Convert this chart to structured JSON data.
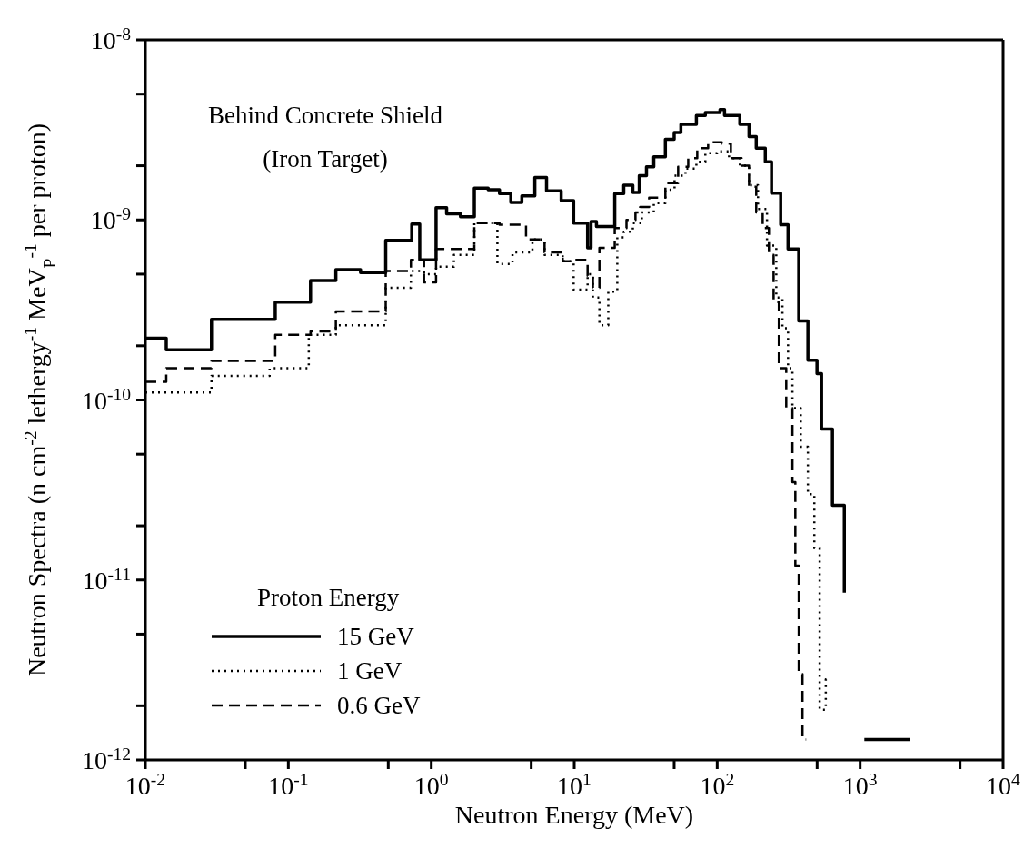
{
  "chart_data": {
    "type": "step",
    "xlabel": "Neutron Energy (MeV)",
    "ylabel": "Neutron Spectra (n cm$^{-2}$ lethergy$^{-1}$ MeV$_{P}$$^{-1}$ per proton)",
    "legend_title": "Proton Energy",
    "annotations": [
      "Behind Concrete Shield",
      "(Iron Target)"
    ],
    "log": "xy",
    "legend": "bottom left",
    "xlim": [
      0.01,
      10000
    ],
    "ylim": [
      1e-12,
      1e-08
    ],
    "xticks": [
      {
        "value": 0.01,
        "label": "10$^{-2}$"
      },
      {
        "value": 0.05,
        "label": null
      },
      {
        "value": 0.1,
        "label": "10$^{-1}$"
      },
      {
        "value": 0.5,
        "label": null
      },
      {
        "value": 1,
        "label": "10$^{0}$"
      },
      {
        "value": 5,
        "label": null
      },
      {
        "value": 10,
        "label": "10$^{1}$"
      },
      {
        "value": 50,
        "label": null
      },
      {
        "value": 100,
        "label": "10$^{2}$"
      },
      {
        "value": 500,
        "label": null
      },
      {
        "value": 1000,
        "label": "10$^{3}$"
      },
      {
        "value": 5000,
        "label": null
      },
      {
        "value": 10000,
        "label": "10$^{4}$"
      }
    ],
    "yticks": [
      {
        "value": 1e-12,
        "label": "10$^{-12}$"
      },
      {
        "value": 2e-12,
        "label": null
      },
      {
        "value": 5e-12,
        "label": null
      },
      {
        "value": 1e-11,
        "label": "10$^{-11}$"
      },
      {
        "value": 2e-11,
        "label": null
      },
      {
        "value": 5e-11,
        "label": null
      },
      {
        "value": 1e-10,
        "label": "10$^{-10}$"
      },
      {
        "value": 2e-10,
        "label": null
      },
      {
        "value": 5e-10,
        "label": null
      },
      {
        "value": 1e-09,
        "label": "10$^{-9}$"
      },
      {
        "value": 2e-09,
        "label": null
      },
      {
        "value": 5e-09,
        "label": null
      },
      {
        "value": 1e-08,
        "label": "10$^{-8}$"
      }
    ],
    "series": [
      {
        "name": "15 GeV",
        "color": "#000000",
        "line_style": "solid",
        "x": [
          0.01,
          0.014,
          0.029,
          0.081,
          0.143,
          0.215,
          0.32,
          0.48,
          0.73,
          0.83,
          1.08,
          1.28,
          1.6,
          2.0,
          2.5,
          3.0,
          3.6,
          4.3,
          5.3,
          6.4,
          8.1,
          9.9,
          12.4,
          13.1,
          14.3,
          19.2,
          22.2,
          25.7,
          28.5,
          32,
          36,
          43.4,
          50,
          55.7,
          71.5,
          82.6,
          104.6,
          112.5,
          144,
          167,
          187.5,
          217,
          240,
          278,
          313,
          372,
          431,
          499,
          537,
          640,
          775,
          800,
          1070,
          2220
        ],
        "values": [
          2.2e-10,
          1.9e-10,
          2.8e-10,
          3.5e-10,
          4.6e-10,
          5.3e-10,
          5.1e-10,
          7.7e-10,
          9.5e-10,
          6e-10,
          1.17e-09,
          1.08e-09,
          1.04e-09,
          1.5e-09,
          1.47e-09,
          1.4e-09,
          1.25e-09,
          1.36e-09,
          1.72e-09,
          1.45e-09,
          1.28e-09,
          9.6e-10,
          7e-10,
          9.8e-10,
          9.2e-10,
          1.4e-09,
          1.56e-09,
          1.42e-09,
          1.76e-09,
          1.97e-09,
          2.24e-09,
          2.8e-09,
          3.06e-09,
          3.4e-09,
          3.8e-09,
          3.95e-09,
          4.1e-09,
          3.8e-09,
          3.4e-09,
          2.9e-09,
          2.5e-09,
          2.1e-09,
          1.41e-09,
          9.4e-10,
          6.9e-10,
          2.75e-10,
          1.66e-10,
          1.4e-10,
          6.9e-11,
          2.6e-11,
          8.5e-12,
          null,
          1.3e-12,
          1.3e-12
        ]
      },
      {
        "name": "1 GeV",
        "color": "#000000",
        "line_style": "dotted",
        "x": [
          0.01,
          0.029,
          0.074,
          0.139,
          0.215,
          0.48,
          0.72,
          0.89,
          1.08,
          1.44,
          2.0,
          2.9,
          3.7,
          5.1,
          6.2,
          8.3,
          9.9,
          12.4,
          13.5,
          15,
          17.3,
          20,
          22.2,
          25.7,
          29.7,
          36,
          43.4,
          50.3,
          60,
          71.5,
          82.6,
          100,
          121,
          144,
          167,
          193,
          223,
          259,
          286,
          313,
          336,
          384,
          431,
          478,
          521,
          575,
          600
        ],
        "values": [
          1.1e-10,
          1.36e-10,
          1.5e-10,
          2.3e-10,
          2.6e-10,
          4.2e-10,
          5.2e-10,
          5e-10,
          5.5e-10,
          6.4e-10,
          9.6e-10,
          5.7e-10,
          6.6e-10,
          7.8e-10,
          6.4e-10,
          5.9e-10,
          4.1e-10,
          5e-10,
          3.7e-10,
          2.6e-10,
          4e-10,
          8e-10,
          8.6e-10,
          9.6e-10,
          1.1e-09,
          1.24e-09,
          1.47e-09,
          1.76e-09,
          1.93e-09,
          2.1e-09,
          2.35e-09,
          2.4e-09,
          2.2e-09,
          2e-09,
          1.56e-09,
          1.15e-09,
          7.2e-10,
          3.7e-10,
          2.5e-10,
          1.5e-10,
          9e-11,
          5.5e-11,
          3e-11,
          1.5e-11,
          1.9e-12,
          2.8e-12,
          2.8e-12
        ]
      },
      {
        "name": "0.6 GeV",
        "color": "#000000",
        "line_style": "dashed",
        "x": [
          0.01,
          0.014,
          0.029,
          0.081,
          0.143,
          0.215,
          0.48,
          0.72,
          0.89,
          1.08,
          2.0,
          3.0,
          4.6,
          6.2,
          8.3,
          10.1,
          12.4,
          13.5,
          15.0,
          19.2,
          23.2,
          26.8,
          28.9,
          33.4,
          43.4,
          53.3,
          62.7,
          72.5,
          86.4,
          107.6,
          124.6,
          148,
          167,
          187.5,
          208,
          230,
          248,
          270,
          304,
          336,
          352,
          372,
          395,
          419
        ],
        "values": [
          1.26e-10,
          1.5e-10,
          1.65e-10,
          2.3e-10,
          2.4e-10,
          3.1e-10,
          5.2e-10,
          6e-10,
          4.5e-10,
          6.9e-10,
          9.6e-10,
          9.4e-10,
          7.8e-10,
          6.6e-10,
          5.9e-10,
          6e-10,
          4.9e-10,
          4.2e-10,
          7e-10,
          9e-10,
          1e-09,
          1.1e-09,
          1.18e-09,
          1.33e-09,
          1.6e-09,
          1.97e-09,
          2.2e-09,
          2.5e-09,
          2.7e-09,
          2.65e-09,
          2.2e-09,
          2e-09,
          1.53e-09,
          1.1e-09,
          9e-10,
          6.4e-10,
          3.5e-10,
          1.5e-10,
          9e-11,
          3.5e-11,
          1.2e-11,
          3e-12,
          1.3e-12,
          1.3e-12
        ]
      }
    ]
  }
}
